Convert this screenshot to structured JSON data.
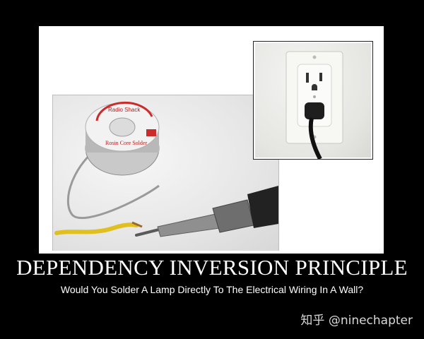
{
  "poster": {
    "title": "DEPENDENCY INVERSION PRINCIPLE",
    "subtitle": "Would You Solder A Lamp Directly To The Electrical Wiring In A Wall?"
  },
  "photos": {
    "solder": {
      "label_top": "Radio Shack",
      "label_main": "Rosin Core Solder"
    },
    "outlet": {}
  },
  "watermark": {
    "text": "知乎 @ninechapter"
  },
  "colors": {
    "background": "#000000",
    "frame": "#ffffff",
    "text": "#ffffff"
  }
}
